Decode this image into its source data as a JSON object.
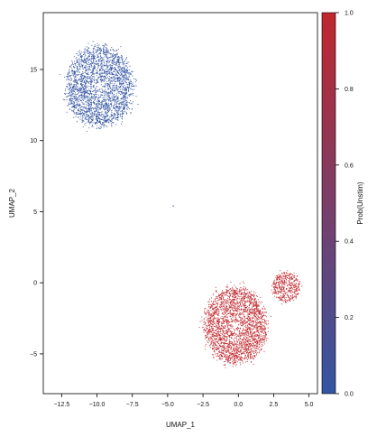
{
  "chart_data": {
    "type": "scatter",
    "xlabel": "UMAP_1",
    "ylabel": "UMAP_2",
    "xlim": [
      -13.8,
      5.6
    ],
    "ylim": [
      -7.8,
      19
    ],
    "xticks": [
      -12.5,
      -10.0,
      -7.5,
      -5.0,
      -2.5,
      0.0,
      2.5,
      5.0
    ],
    "xtick_labels": [
      "−12.5",
      "−10.0",
      "−7.5",
      "−5.0",
      "−2.5",
      "0.0",
      "2.5",
      "5.0"
    ],
    "yticks": [
      -5,
      0,
      5,
      10,
      15
    ],
    "ytick_labels": [
      "−5",
      "0",
      "5",
      "10",
      "15"
    ],
    "grid": false,
    "point_size": "small",
    "colormap": {
      "label": "Prob(Unstim)",
      "range": [
        0,
        1
      ],
      "ticks": [
        0.0,
        0.2,
        0.4,
        0.6,
        0.8,
        1.0
      ],
      "tick_labels": [
        "0.0",
        "0.2",
        "0.4",
        "0.6",
        "0.8",
        "1.0"
      ],
      "low_color": "#3355a3",
      "high_color": "#c1272d"
    },
    "clusters": [
      {
        "center_x": -9.8,
        "center_y": 13.8,
        "spread_x": 1.6,
        "spread_y": 1.9,
        "count": 2600,
        "value": 0.0
      },
      {
        "center_x": -0.2,
        "center_y": -3.0,
        "spread_x": 1.5,
        "spread_y": 1.8,
        "count": 2600,
        "value": 1.0
      },
      {
        "center_x": 3.4,
        "center_y": -0.3,
        "spread_x": 0.65,
        "spread_y": 0.7,
        "count": 450,
        "value": 1.0
      }
    ],
    "outliers": [
      {
        "x": -4.6,
        "y": 5.4,
        "value": 0.0
      }
    ]
  }
}
